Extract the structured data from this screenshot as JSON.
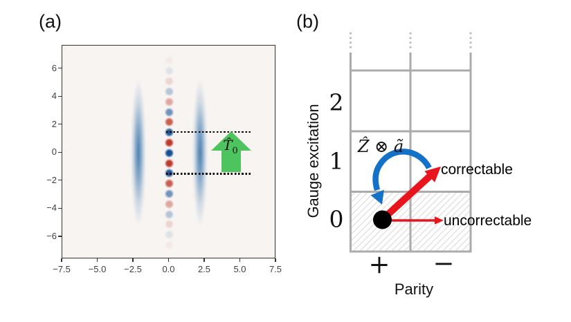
{
  "figure": {
    "panel_a": {
      "label": "(a)",
      "arrow_label_main": "T̂",
      "arrow_label_sub": "0"
    },
    "panel_b": {
      "label": "(b)",
      "y_axis_label": "Gauge excitation",
      "x_axis_label": "Parity",
      "row_labels": [
        "2",
        "1",
        "0"
      ],
      "col_labels": [
        "+",
        "−"
      ],
      "operator_label": "Ẑ ⊗ ã",
      "arrow_labels": {
        "diagonal": "correctable",
        "horizontal": "uncorrectable"
      },
      "colors": {
        "grid": "#ababab",
        "hatch": "#d0d0d0",
        "red_arrow": "#e8151c",
        "blue_arrow": "#1371c8",
        "state_dot": "#000000"
      }
    }
  },
  "chart_data": {
    "type": "heatmap",
    "title": "",
    "xlabel": "",
    "ylabel": "",
    "xlim": [
      -7.5,
      7.5
    ],
    "ylim": [
      -7.65,
      7.65
    ],
    "grid": false,
    "background": "#f7f4f2",
    "xticks": [
      -7.5,
      -5.0,
      -2.5,
      0.0,
      2.5,
      5.0,
      7.5
    ],
    "xtick_labels": [
      "−7.5",
      "−5.0",
      "−2.5",
      "0.0",
      "2.5",
      "5.0",
      "7.5"
    ],
    "yticks": [
      6,
      4,
      2,
      0,
      -2,
      -4,
      -6
    ],
    "ytick_labels": [
      "6",
      "4",
      "2",
      "0",
      "−2",
      "−4",
      "−6"
    ],
    "central_fringe_column": {
      "x": 0.0,
      "dot_spacing": 0.73,
      "blue": "#124f93",
      "red": "#bd3425",
      "dots": [
        {
          "y": 6.57,
          "c": "red",
          "o": 0.05
        },
        {
          "y": 5.84,
          "c": "blue",
          "o": 0.1
        },
        {
          "y": 5.11,
          "c": "red",
          "o": 0.16
        },
        {
          "y": 4.38,
          "c": "blue",
          "o": 0.28
        },
        {
          "y": 3.65,
          "c": "red",
          "o": 0.4
        },
        {
          "y": 2.92,
          "c": "blue",
          "o": 0.58
        },
        {
          "y": 2.19,
          "c": "red",
          "o": 0.78
        },
        {
          "y": 1.46,
          "c": "blue",
          "o": 0.93
        },
        {
          "y": 0.73,
          "c": "red",
          "o": 0.97
        },
        {
          "y": 0.0,
          "c": "blue",
          "o": 1.0
        },
        {
          "y": -0.73,
          "c": "red",
          "o": 0.97
        },
        {
          "y": -1.46,
          "c": "blue",
          "o": 0.93
        },
        {
          "y": -2.19,
          "c": "red",
          "o": 0.78
        },
        {
          "y": -2.92,
          "c": "blue",
          "o": 0.58
        },
        {
          "y": -3.65,
          "c": "red",
          "o": 0.4
        },
        {
          "y": -4.38,
          "c": "blue",
          "o": 0.28
        },
        {
          "y": -5.11,
          "c": "red",
          "o": 0.16
        },
        {
          "y": -5.84,
          "c": "blue",
          "o": 0.1
        },
        {
          "y": -6.57,
          "c": "red",
          "o": 0.05
        }
      ]
    },
    "side_stripes": {
      "xs": [
        -2.15,
        2.15
      ],
      "y_half_extent": 6.7,
      "color_rgb": "55,115,170"
    },
    "dotted_guide_lines_y": [
      1.5,
      -1.5
    ],
    "translation_arrow": {
      "label": "T̂₀",
      "x_center": 4.4,
      "y_from": -1.5,
      "y_to": 1.5,
      "color": "#4ec45f"
    }
  }
}
